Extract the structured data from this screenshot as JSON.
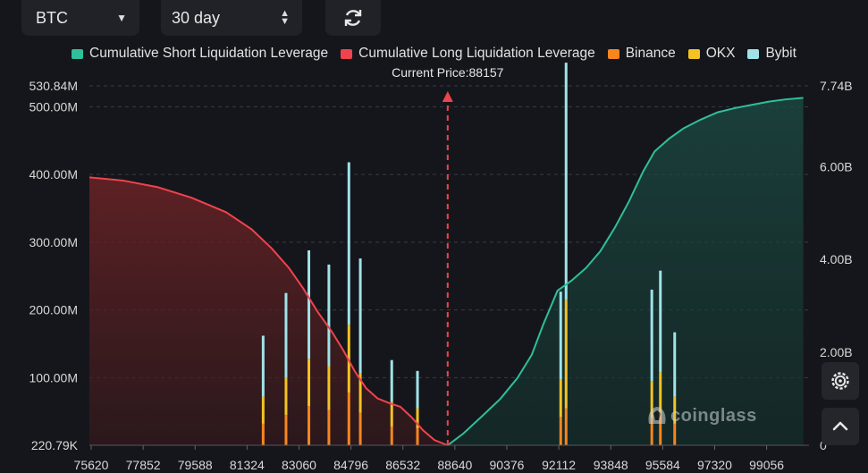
{
  "controls": {
    "symbol": "BTC",
    "period": "30 day"
  },
  "legend": [
    {
      "label": "Cumulative Short Liquidation Leverage",
      "color": "#2fbf9b"
    },
    {
      "label": "Cumulative Long Liquidation Leverage",
      "color": "#f0434d"
    },
    {
      "label": "Binance",
      "color": "#f7861f"
    },
    {
      "label": "OKX",
      "color": "#f3c324"
    },
    {
      "label": "Bybit",
      "color": "#9fe3e9"
    }
  ],
  "current_price_label": "Current Price:88157",
  "watermark": "coinglass",
  "chart_data": {
    "type": "bar",
    "title": "",
    "current_price": 88157,
    "x_range": [
      75620,
      100800
    ],
    "x_tick_labels": [
      "75620",
      "77852",
      "79588",
      "81324",
      "83060",
      "84796",
      "86532",
      "88640",
      "90376",
      "92112",
      "93848",
      "95584",
      "97320",
      "99056"
    ],
    "left_axis": {
      "ylim": [
        220790,
        530840000
      ],
      "tick_labels": [
        "530.84M",
        "500.00M",
        "400.00M",
        "300.00M",
        "200.00M",
        "100.00M",
        "220.79K"
      ],
      "tick_values": [
        530840000,
        500000000,
        400000000,
        300000000,
        200000000,
        100000000,
        220790
      ]
    },
    "right_axis": {
      "ylim": [
        0,
        7740000000
      ],
      "tick_labels": [
        "7.74B",
        "6.00B",
        "4.00B",
        "2.00B",
        "0"
      ],
      "tick_values": [
        7740000000,
        6000000000,
        4000000000,
        2000000000,
        0
      ]
    },
    "grid": true,
    "legend_position": "top",
    "series": [
      {
        "name": "Cumulative Long Liquidation Leverage",
        "type": "area",
        "axis": "right",
        "x": [
          75620,
          76800,
          78000,
          79200,
          80400,
          81300,
          82000,
          82600,
          83100,
          83600,
          84100,
          84500,
          84900,
          85300,
          85700,
          86100,
          86500,
          86900,
          87300,
          87700,
          88157
        ],
        "y": [
          5770000000,
          5700000000,
          5560000000,
          5330000000,
          5020000000,
          4650000000,
          4240000000,
          3820000000,
          3380000000,
          2880000000,
          2450000000,
          2050000000,
          1600000000,
          1230000000,
          1010000000,
          910000000,
          830000000,
          600000000,
          320000000,
          110000000,
          0
        ]
      },
      {
        "name": "Cumulative Short Liquidation Leverage",
        "type": "area",
        "axis": "right",
        "x": [
          88157,
          88700,
          89400,
          90000,
          90600,
          91100,
          91500,
          92000,
          92500,
          93000,
          93500,
          94000,
          94500,
          95000,
          95400,
          95900,
          96400,
          97000,
          97600,
          98200,
          98800,
          99400,
          100000,
          100600
        ],
        "y": [
          0,
          250000000,
          650000000,
          1000000000,
          1450000000,
          1950000000,
          2600000000,
          3330000000,
          3550000000,
          3820000000,
          4180000000,
          4680000000,
          5250000000,
          5900000000,
          6330000000,
          6600000000,
          6820000000,
          7010000000,
          7170000000,
          7260000000,
          7330000000,
          7400000000,
          7450000000,
          7480000000
        ]
      },
      {
        "name": "Binance",
        "type": "bar",
        "axis": "left",
        "x": [
          81700,
          82500,
          83300,
          84000,
          84700,
          85100,
          86200,
          87100,
          92112,
          92300,
          95300,
          95600,
          96100
        ],
        "y": [
          32000000,
          45000000,
          58000000,
          52000000,
          78000000,
          48000000,
          28000000,
          25000000,
          42000000,
          55000000,
          40000000,
          46000000,
          32000000
        ]
      },
      {
        "name": "OKX",
        "type": "bar",
        "axis": "left",
        "x": [
          81700,
          82500,
          83300,
          84000,
          84700,
          85100,
          86200,
          87100,
          92112,
          92300,
          95300,
          95600,
          96100
        ],
        "y": [
          40000000,
          55000000,
          70000000,
          65000000,
          100000000,
          58000000,
          36000000,
          30000000,
          55000000,
          160000000,
          55000000,
          62000000,
          40000000
        ]
      },
      {
        "name": "Bybit",
        "type": "bar",
        "axis": "left",
        "x": [
          81700,
          82500,
          83300,
          84000,
          84700,
          85100,
          86200,
          87100,
          92112,
          92300,
          95300,
          95600,
          96100
        ],
        "y": [
          90000000,
          125000000,
          160000000,
          150000000,
          240000000,
          170000000,
          62000000,
          55000000,
          130000000,
          350000000,
          135000000,
          150000000,
          95000000
        ]
      }
    ]
  }
}
